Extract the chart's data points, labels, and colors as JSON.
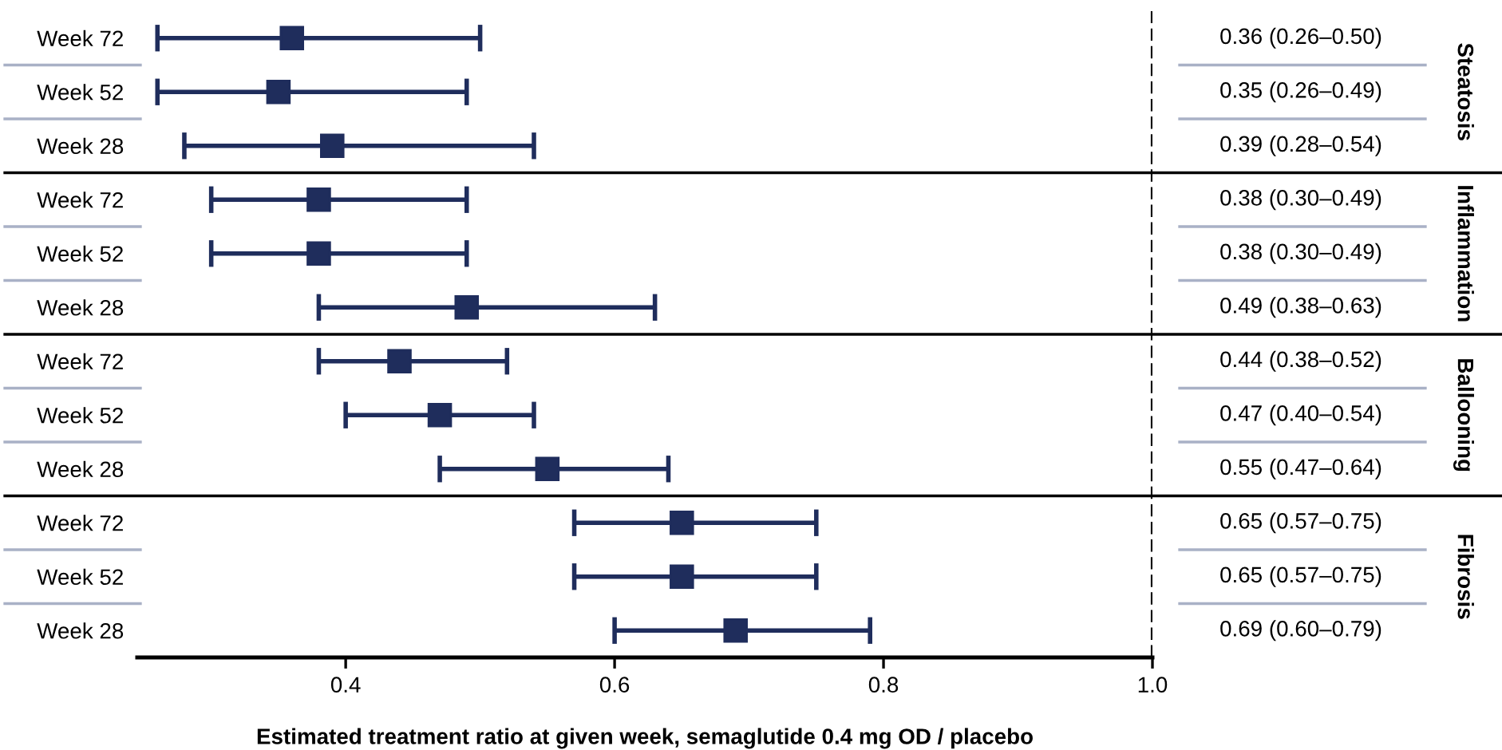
{
  "chart_data": {
    "type": "scatter",
    "orientation": "horizontal",
    "categories": [
      "Week 72",
      "Week 52",
      "Week 28",
      "Week 72",
      "Week 52",
      "Week 28",
      "Week 72",
      "Week 52",
      "Week 28",
      "Week 72",
      "Week 52",
      "Week 28"
    ],
    "values": [
      0.36,
      0.35,
      0.39,
      0.38,
      0.38,
      0.49,
      0.44,
      0.47,
      0.55,
      0.65,
      0.65,
      0.69
    ],
    "errors": [
      [
        0.26,
        0.5
      ],
      [
        0.26,
        0.49
      ],
      [
        0.28,
        0.54
      ],
      [
        0.3,
        0.49
      ],
      [
        0.3,
        0.49
      ],
      [
        0.38,
        0.63
      ],
      [
        0.38,
        0.52
      ],
      [
        0.4,
        0.54
      ],
      [
        0.47,
        0.64
      ],
      [
        0.57,
        0.75
      ],
      [
        0.57,
        0.75
      ],
      [
        0.6,
        0.79
      ]
    ],
    "value_labels": [
      "0.36 (0.26–0.50)",
      "0.35 (0.26–0.49)",
      "0.39 (0.28–0.54)",
      "0.38 (0.30–0.49)",
      "0.38 (0.30–0.49)",
      "0.49 (0.38–0.63)",
      "0.44 (0.38–0.52)",
      "0.47 (0.40–0.54)",
      "0.55 (0.47–0.64)",
      "0.65 (0.57–0.75)",
      "0.65 (0.57–0.75)",
      "0.69 (0.60–0.79)"
    ],
    "color": "#1f2d5c",
    "marker": "square",
    "xlabel": "Estimated treatment ratio at given week, semaglutide 0.4 mg OD / placebo",
    "xlim": [
      0.245,
      1.0
    ],
    "xticks": [
      0.4,
      0.6,
      0.8,
      {
        "value": 1.0,
        "label": "1.0"
      }
    ],
    "ref_lines": [
      {
        "axis": "x",
        "value": 1.0,
        "line_style": "dashed",
        "color": "#000000"
      }
    ],
    "annotations": [
      "Steatosis",
      "Inflammation",
      "Ballooning",
      "Fibrosis"
    ],
    "grid": false
  }
}
